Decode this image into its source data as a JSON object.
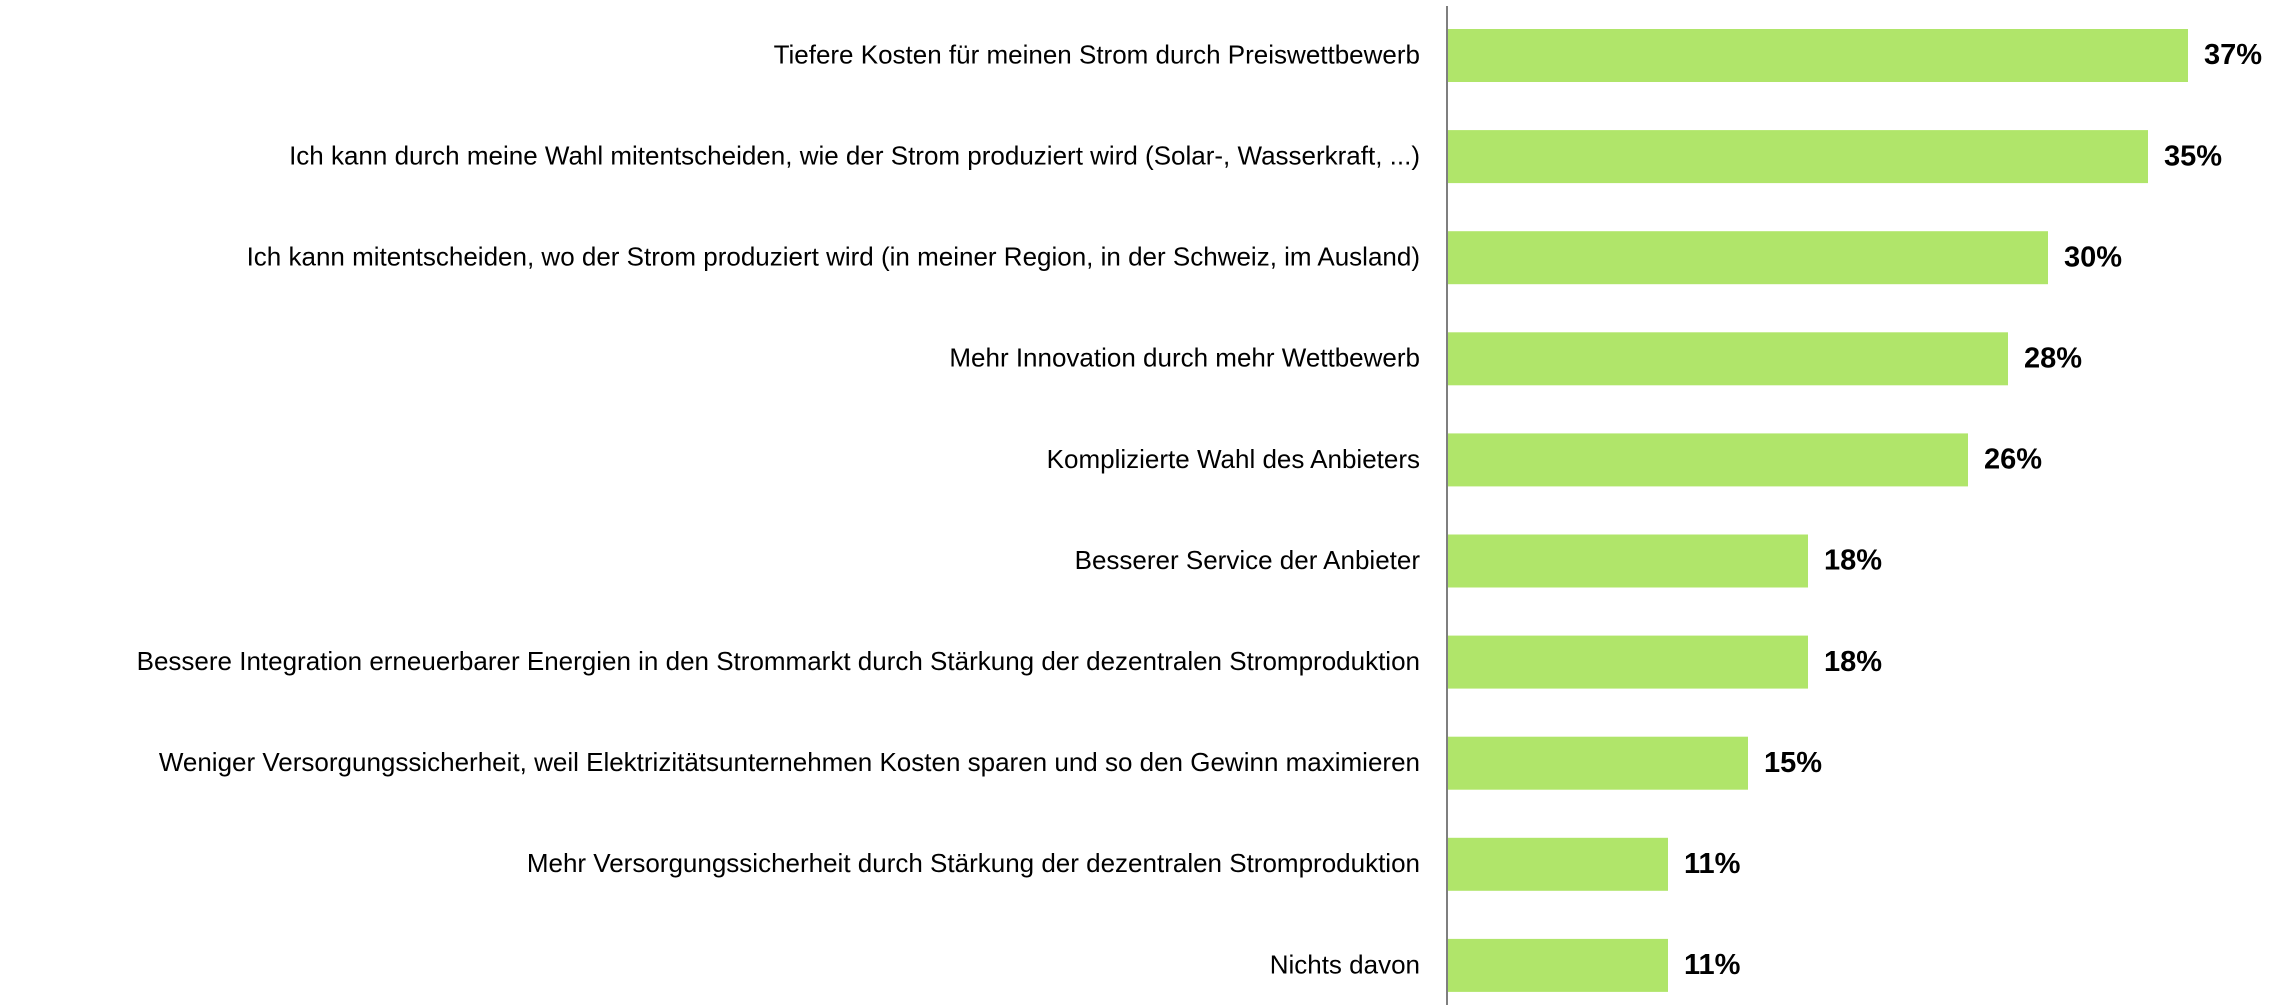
{
  "chart_data": {
    "type": "bar",
    "orientation": "horizontal",
    "categories": [
      "Tiefere Kosten für meinen Strom durch Preiswettbewerb",
      "Ich kann durch meine Wahl mitentscheiden, wie der Strom produziert wird (Solar-, Wasserkraft, ...)",
      "Ich kann mitentscheiden, wo der Strom produziert wird (in meiner Region, in der Schweiz, im Ausland)",
      "Mehr Innovation durch mehr Wettbewerb",
      "Komplizierte Wahl des Anbieters",
      "Besserer Service der Anbieter",
      "Bessere Integration erneuerbarer Energien in den Strommarkt durch Stärkung der dezentralen Stromproduktion",
      "Weniger Versorgungssicherheit, weil Elektrizitätsunternehmen Kosten sparen und so den Gewinn maximieren",
      "Mehr Versorgungssicherheit durch Stärkung der dezentralen Stromproduktion",
      "Nichts davon"
    ],
    "values": [
      37,
      35,
      30,
      28,
      26,
      18,
      18,
      15,
      11,
      11
    ],
    "value_labels": [
      "37%",
      "35%",
      "30%",
      "28%",
      "26%",
      "18%",
      "18%",
      "15%",
      "11%",
      "11%"
    ],
    "color": "#b0e56a"
  }
}
